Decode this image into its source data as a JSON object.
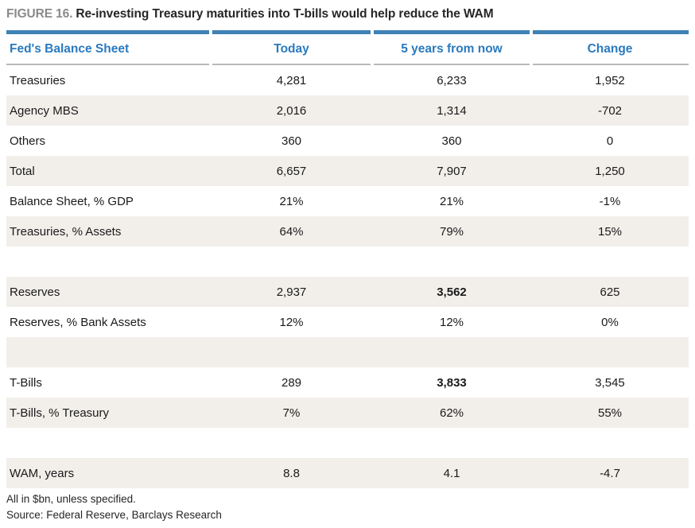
{
  "title": {
    "prefix": "FIGURE 16.",
    "text": "Re-investing Treasury maturities into T-bills would help reduce the WAM"
  },
  "colors": {
    "accent_blue": "#2a7abf",
    "bar_blue": "#3e81b4",
    "row_shade": "#f2efeb",
    "divider_gray": "#b9b9b9",
    "title_gray": "#8a8a8a",
    "text_dark": "#1a1a1a"
  },
  "table": {
    "columns": [
      "Fed's Balance Sheet",
      "Today",
      "5 years from now",
      "Change"
    ],
    "rows": [
      {
        "label": "Treasuries",
        "today": "4,281",
        "future": "6,233",
        "change": "1,952",
        "shade": false
      },
      {
        "label": "Agency MBS",
        "today": "2,016",
        "future": "1,314",
        "change": "-702",
        "shade": true
      },
      {
        "label": "Others",
        "today": "360",
        "future": "360",
        "change": "0",
        "shade": false
      },
      {
        "label": "Total",
        "today": "6,657",
        "future": "7,907",
        "change": "1,250",
        "shade": true
      },
      {
        "label": "Balance Sheet, % GDP",
        "today": "21%",
        "future": "21%",
        "change": "-1%",
        "shade": false
      },
      {
        "label": "Treasuries, % Assets",
        "today": "64%",
        "future": "79%",
        "change": "15%",
        "shade": true
      },
      {
        "label": "",
        "today": "",
        "future": "",
        "change": "",
        "shade": false
      },
      {
        "label": "Reserves",
        "today": "2,937",
        "future": "3,562",
        "change": "625",
        "shade": true,
        "bold_future": true
      },
      {
        "label": "Reserves, % Bank Assets",
        "today": "12%",
        "future": "12%",
        "change": "0%",
        "shade": false
      },
      {
        "label": "",
        "today": "",
        "future": "",
        "change": "",
        "shade": true
      },
      {
        "label": "T-Bills",
        "today": "289",
        "future": "3,833",
        "change": "3,545",
        "shade": false,
        "bold_future": true
      },
      {
        "label": "T-Bills, % Treasury",
        "today": "7%",
        "future": "62%",
        "change": "55%",
        "shade": true
      },
      {
        "label": "",
        "today": "",
        "future": "",
        "change": "",
        "shade": false
      },
      {
        "label": "WAM, years",
        "today": "8.8",
        "future": "4.1",
        "change": "-4.7",
        "shade": true
      }
    ]
  },
  "footnotes": [
    "All in $bn, unless specified.",
    "Source: Federal Reserve, Barclays Research"
  ],
  "chart_data": {
    "type": "table",
    "title": "FIGURE 16. Re-investing Treasury maturities into T-bills would help reduce the WAM",
    "columns": [
      "Fed's Balance Sheet",
      "Today",
      "5 years from now",
      "Change"
    ],
    "rows": [
      [
        "Treasuries",
        4281,
        6233,
        1952
      ],
      [
        "Agency MBS",
        2016,
        1314,
        -702
      ],
      [
        "Others",
        360,
        360,
        0
      ],
      [
        "Total",
        6657,
        7907,
        1250
      ],
      [
        "Balance Sheet, % GDP",
        "21%",
        "21%",
        "-1%"
      ],
      [
        "Treasuries, % Assets",
        "64%",
        "79%",
        "15%"
      ],
      [
        "Reserves",
        2937,
        3562,
        625
      ],
      [
        "Reserves, % Bank Assets",
        "12%",
        "12%",
        "0%"
      ],
      [
        "T-Bills",
        289,
        3833,
        3545
      ],
      [
        "T-Bills, % Treasury",
        "7%",
        "62%",
        "55%"
      ],
      [
        "WAM, years",
        8.8,
        4.1,
        -4.7
      ]
    ],
    "emphasized_cells": [
      [
        "Reserves",
        "5 years from now"
      ],
      [
        "T-Bills",
        "5 years from now"
      ]
    ],
    "notes": [
      "All in $bn, unless specified.",
      "Source: Federal Reserve, Barclays Research"
    ]
  }
}
